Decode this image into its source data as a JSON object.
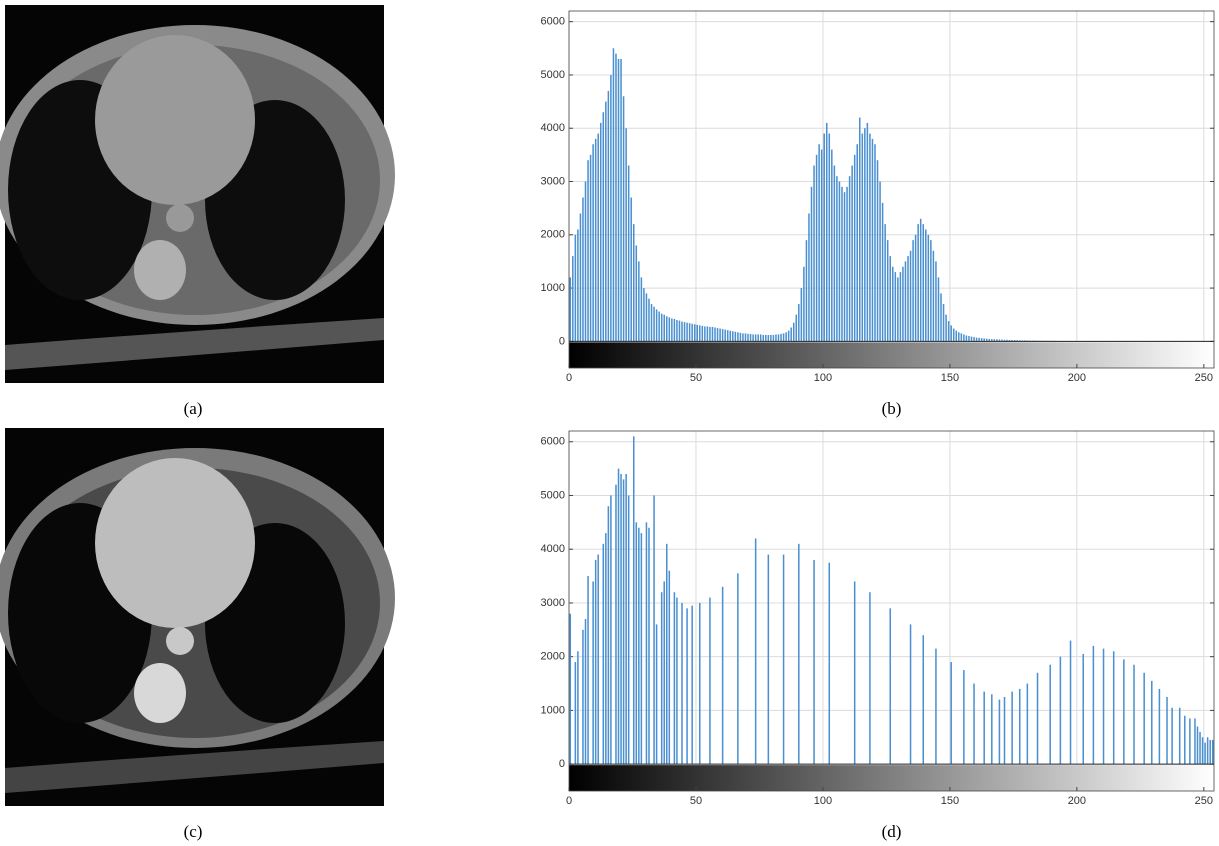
{
  "images": [
    {
      "caption": "(a)"
    },
    {
      "caption": "(c)"
    }
  ],
  "chart_data": [
    {
      "type": "histogram",
      "caption": "(b)",
      "color": "#4a90d0",
      "grid": true,
      "xlim": [
        0,
        254
      ],
      "xticks": [
        0,
        50,
        100,
        150,
        200,
        250
      ],
      "ylim": [
        -500,
        6200
      ],
      "yticks": [
        0,
        1000,
        2000,
        3000,
        4000,
        5000,
        6000
      ],
      "bins": [
        0,
        1,
        2,
        3,
        4,
        5,
        6,
        7,
        8,
        9,
        10,
        11,
        12,
        13,
        14,
        15,
        16,
        17,
        18,
        19,
        20,
        21,
        22,
        23,
        24,
        25,
        26,
        27,
        28,
        29,
        30,
        31,
        32,
        33,
        34,
        35,
        36,
        37,
        38,
        39,
        40,
        41,
        42,
        43,
        44,
        45,
        46,
        47,
        48,
        49,
        50,
        51,
        52,
        53,
        54,
        55,
        56,
        57,
        58,
        59,
        60,
        61,
        62,
        63,
        64,
        65,
        66,
        67,
        68,
        69,
        70,
        71,
        72,
        73,
        74,
        75,
        76,
        77,
        78,
        79,
        80,
        81,
        82,
        83,
        84,
        85,
        86,
        87,
        88,
        89,
        90,
        91,
        92,
        93,
        94,
        95,
        96,
        97,
        98,
        99,
        100,
        101,
        102,
        103,
        104,
        105,
        106,
        107,
        108,
        109,
        110,
        111,
        112,
        113,
        114,
        115,
        116,
        117,
        118,
        119,
        120,
        121,
        122,
        123,
        124,
        125,
        126,
        127,
        128,
        129,
        130,
        131,
        132,
        133,
        134,
        135,
        136,
        137,
        138,
        139,
        140,
        141,
        142,
        143,
        144,
        145,
        146,
        147,
        148,
        149,
        150,
        151,
        152,
        153,
        154,
        155,
        156,
        157,
        158,
        159,
        160,
        161,
        162,
        163,
        164,
        165,
        166,
        167,
        168,
        169,
        170,
        171,
        172,
        173,
        174,
        175,
        176,
        177,
        178,
        179,
        180,
        181,
        182,
        183,
        184,
        185,
        186,
        187,
        188,
        189,
        190,
        191,
        192,
        193,
        194,
        195,
        196,
        197,
        198,
        199,
        200,
        201,
        202,
        203,
        204,
        205,
        206,
        207,
        208,
        209,
        210,
        211,
        212,
        213,
        214,
        215,
        216,
        217,
        218,
        219,
        220,
        221,
        222,
        223,
        224,
        225,
        226,
        227,
        228,
        229,
        230,
        231,
        232,
        233,
        234,
        235,
        236,
        237,
        238,
        239,
        240,
        241,
        242,
        243,
        244,
        245,
        246,
        247,
        248,
        249,
        250,
        251,
        252,
        253,
        254,
        255,
        256
      ],
      "values": [
        1200,
        1600,
        2000,
        2100,
        2400,
        2700,
        3000,
        3400,
        3500,
        3700,
        3800,
        3900,
        4100,
        4300,
        4500,
        4700,
        5000,
        5500,
        5400,
        5300,
        5300,
        4600,
        4000,
        3300,
        2700,
        2200,
        1800,
        1500,
        1200,
        1000,
        900,
        800,
        700,
        650,
        600,
        560,
        520,
        500,
        470,
        450,
        430,
        420,
        400,
        390,
        370,
        360,
        350,
        340,
        330,
        320,
        310,
        300,
        290,
        280,
        280,
        270,
        270,
        260,
        250,
        240,
        230,
        220,
        210,
        200,
        190,
        180,
        170,
        160,
        150,
        150,
        140,
        140,
        130,
        130,
        130,
        130,
        120,
        120,
        120,
        120,
        120,
        130,
        130,
        140,
        150,
        170,
        200,
        260,
        350,
        500,
        700,
        1000,
        1400,
        1900,
        2400,
        2900,
        3300,
        3500,
        3700,
        3600,
        3900,
        4100,
        3900,
        3600,
        3300,
        3100,
        3000,
        2900,
        2800,
        2900,
        3100,
        3300,
        3500,
        3700,
        4200,
        3900,
        4000,
        4100,
        3900,
        3800,
        3700,
        3400,
        3000,
        2600,
        2200,
        1900,
        1600,
        1400,
        1300,
        1200,
        1300,
        1400,
        1500,
        1600,
        1700,
        1900,
        2000,
        2200,
        2300,
        2200,
        2100,
        2000,
        1900,
        1700,
        1500,
        1200,
        900,
        700,
        500,
        380,
        300,
        240,
        200,
        170,
        150,
        130,
        110,
        100,
        90,
        80,
        70,
        65,
        60,
        55,
        50,
        45,
        42,
        40,
        38,
        35,
        33,
        30,
        28,
        26,
        25,
        24,
        22,
        20,
        19,
        18,
        17,
        16,
        15,
        14,
        13,
        12,
        12,
        11,
        10,
        10,
        9,
        9,
        8,
        8,
        7,
        7,
        6,
        6,
        6,
        5,
        5,
        5,
        4,
        4,
        4,
        3,
        3,
        3,
        3,
        2,
        2,
        2,
        2,
        1,
        1,
        1,
        1,
        1,
        0,
        0,
        0,
        0,
        0,
        0,
        0,
        0,
        0,
        0,
        0,
        0,
        0,
        0,
        0,
        0,
        0,
        0,
        0,
        0,
        0,
        0,
        0,
        0,
        0,
        0,
        0,
        0,
        0,
        0,
        0,
        0,
        0,
        0,
        0,
        0,
        0,
        0
      ]
    },
    {
      "type": "histogram",
      "caption": "(d)",
      "color": "#4a90d0",
      "grid": true,
      "xlim": [
        0,
        254
      ],
      "xticks": [
        0,
        50,
        100,
        150,
        200,
        250
      ],
      "ylim": [
        -500,
        6200
      ],
      "yticks": [
        0,
        1000,
        2000,
        3000,
        4000,
        5000,
        6000
      ],
      "bins": [
        0,
        1,
        2,
        3,
        4,
        5,
        6,
        7,
        8,
        9,
        10,
        11,
        12,
        13,
        14,
        15,
        16,
        17,
        18,
        19,
        20,
        21,
        22,
        23,
        24,
        25,
        26,
        27,
        28,
        29,
        30,
        31,
        32,
        33,
        34,
        35,
        36,
        37,
        38,
        39,
        40,
        41,
        42,
        43,
        44,
        45,
        46,
        47,
        48,
        49,
        50,
        51,
        52,
        53,
        54,
        55,
        56,
        57,
        58,
        59,
        60,
        61,
        62,
        63,
        64,
        65,
        66,
        67,
        68,
        69,
        70,
        71,
        72,
        73,
        74,
        75,
        76,
        77,
        78,
        79,
        80,
        81,
        82,
        83,
        84,
        85,
        86,
        87,
        88,
        89,
        90,
        91,
        92,
        93,
        94,
        95,
        96,
        97,
        98,
        99,
        100,
        101,
        102,
        103,
        104,
        105,
        106,
        107,
        108,
        109,
        110,
        111,
        112,
        113,
        114,
        115,
        116,
        117,
        118,
        119,
        120,
        121,
        122,
        123,
        124,
        125,
        126,
        127,
        128,
        129,
        130,
        131,
        132,
        133,
        134,
        135,
        136,
        137,
        138,
        139,
        140,
        141,
        142,
        143,
        144,
        145,
        146,
        147,
        148,
        149,
        150,
        151,
        152,
        153,
        154,
        155,
        156,
        157,
        158,
        159,
        160,
        161,
        162,
        163,
        164,
        165,
        166,
        167,
        168,
        169,
        170,
        171,
        172,
        173,
        174,
        175,
        176,
        177,
        178,
        179,
        180,
        181,
        182,
        183,
        184,
        185,
        186,
        187,
        188,
        189,
        190,
        191,
        192,
        193,
        194,
        195,
        196,
        197,
        198,
        199,
        200,
        201,
        202,
        203,
        204,
        205,
        206,
        207,
        208,
        209,
        210,
        211,
        212,
        213,
        214,
        215,
        216,
        217,
        218,
        219,
        220,
        221,
        222,
        223,
        224,
        225,
        226,
        227,
        228,
        229,
        230,
        231,
        232,
        233,
        234,
        235,
        236,
        237,
        238,
        239,
        240,
        241,
        242,
        243,
        244,
        245,
        246,
        247,
        248,
        249,
        250,
        251,
        252,
        253,
        254,
        255,
        256
      ],
      "values": [
        2800,
        0,
        1900,
        2100,
        0,
        2500,
        2700,
        3500,
        0,
        3400,
        3800,
        3900,
        0,
        4100,
        4300,
        4800,
        5000,
        0,
        5200,
        5500,
        5400,
        5300,
        5400,
        5000,
        0,
        6100,
        4500,
        4400,
        4300,
        0,
        4500,
        4400,
        0,
        5000,
        2600,
        0,
        3200,
        3400,
        4100,
        3600,
        0,
        3200,
        3100,
        0,
        3000,
        0,
        2900,
        0,
        2950,
        0,
        0,
        3000,
        0,
        0,
        0,
        3100,
        0,
        0,
        0,
        0,
        3300,
        0,
        0,
        0,
        0,
        0,
        3550,
        0,
        0,
        0,
        0,
        0,
        0,
        4200,
        0,
        0,
        0,
        0,
        3900,
        0,
        0,
        0,
        0,
        0,
        3900,
        0,
        0,
        0,
        0,
        0,
        4100,
        0,
        0,
        0,
        0,
        0,
        3800,
        0,
        0,
        0,
        0,
        0,
        3750,
        0,
        0,
        0,
        0,
        0,
        0,
        0,
        0,
        0,
        3400,
        0,
        0,
        0,
        0,
        0,
        3200,
        0,
        0,
        0,
        0,
        0,
        0,
        0,
        2900,
        0,
        0,
        0,
        0,
        0,
        0,
        0,
        2600,
        0,
        0,
        0,
        0,
        2400,
        0,
        0,
        0,
        0,
        2150,
        0,
        0,
        0,
        0,
        0,
        1900,
        0,
        0,
        0,
        0,
        1750,
        0,
        0,
        0,
        1500,
        0,
        0,
        0,
        1350,
        0,
        0,
        1300,
        0,
        0,
        1200,
        0,
        1250,
        0,
        0,
        1350,
        0,
        0,
        1400,
        0,
        0,
        1500,
        0,
        0,
        0,
        1700,
        0,
        0,
        0,
        0,
        1850,
        0,
        0,
        0,
        2000,
        0,
        0,
        0,
        2300,
        0,
        0,
        0,
        0,
        2050,
        0,
        0,
        0,
        2200,
        0,
        0,
        0,
        2150,
        0,
        0,
        0,
        2100,
        0,
        0,
        0,
        1950,
        0,
        0,
        0,
        1850,
        0,
        0,
        0,
        1700,
        0,
        0,
        1550,
        0,
        0,
        1400,
        0,
        0,
        1250,
        0,
        1050,
        0,
        0,
        1050,
        0,
        900,
        0,
        850,
        0,
        850,
        700,
        600,
        500,
        400,
        500,
        450,
        450,
        500,
        450
      ]
    }
  ]
}
